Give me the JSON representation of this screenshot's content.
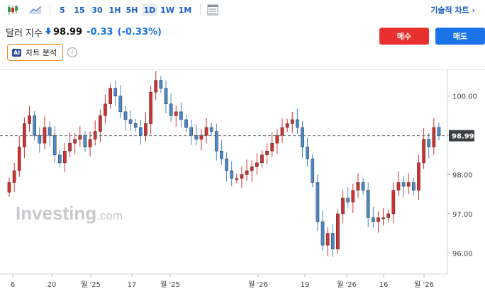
{
  "toolbar": {
    "icons": [
      "candlestick-chart-icon",
      "area-chart-icon",
      "table-view-icon"
    ],
    "timeframes": [
      "5",
      "15",
      "30",
      "1H",
      "5H",
      "1D",
      "1W",
      "1M"
    ],
    "active_timeframe": "1D",
    "technical_link": "기술적 차트 ›"
  },
  "header": {
    "instrument": "달러 지수",
    "price": "98.99",
    "change": "-0.33",
    "change_pct": "(-0.33%)",
    "direction_icon": "down-arrow-icon",
    "ai_badge": "AI",
    "ai_label": "차트 분석",
    "info_glyph": "i",
    "buy_label": "매수",
    "sell_label": "매도"
  },
  "colors": {
    "up": "#d32f2f",
    "down": "#4a89c8",
    "buy": "#e8312f",
    "sell": "#1a73e8"
  },
  "watermark": {
    "main": "Investing",
    "suffix": ".com"
  },
  "chart_data": {
    "type": "candlestick",
    "ylim": [
      95.5,
      100.5
    ],
    "y_ticks": [
      "100.00",
      "99.00",
      "98.00",
      "97.00",
      "96.00"
    ],
    "x_ticks": [
      "6",
      "20",
      "월 '25",
      "17",
      "월 '25",
      "월 '26",
      "19",
      "월 '26",
      "16",
      "월 '26"
    ],
    "last_price_label": "98.99",
    "last_price": 98.99,
    "closes": [
      97.8,
      98.1,
      98.7,
      99.3,
      99.5,
      99.0,
      98.8,
      99.2,
      99.0,
      98.5,
      98.3,
      98.6,
      98.8,
      98.9,
      99.0,
      98.7,
      98.9,
      99.1,
      99.5,
      99.8,
      100.2,
      100.0,
      99.6,
      99.4,
      99.3,
      99.2,
      99.0,
      99.3,
      100.1,
      100.4,
      100.2,
      99.8,
      99.5,
      99.6,
      99.4,
      99.2,
      99.0,
      98.9,
      99.0,
      99.2,
      99.1,
      98.6,
      98.4,
      98.1,
      97.9,
      97.9,
      98.0,
      98.1,
      98.2,
      98.3,
      98.5,
      98.6,
      98.8,
      99.0,
      99.2,
      99.3,
      99.4,
      99.2,
      98.7,
      98.4,
      97.8,
      96.8,
      96.2,
      96.5,
      96.1,
      97.0,
      97.4,
      97.3,
      97.6,
      97.8,
      97.6,
      96.9,
      96.8,
      96.9,
      96.9,
      97.0,
      97.6,
      97.8,
      97.7,
      97.8,
      97.6,
      98.3,
      98.9,
      98.7,
      99.2,
      98.99
    ]
  }
}
